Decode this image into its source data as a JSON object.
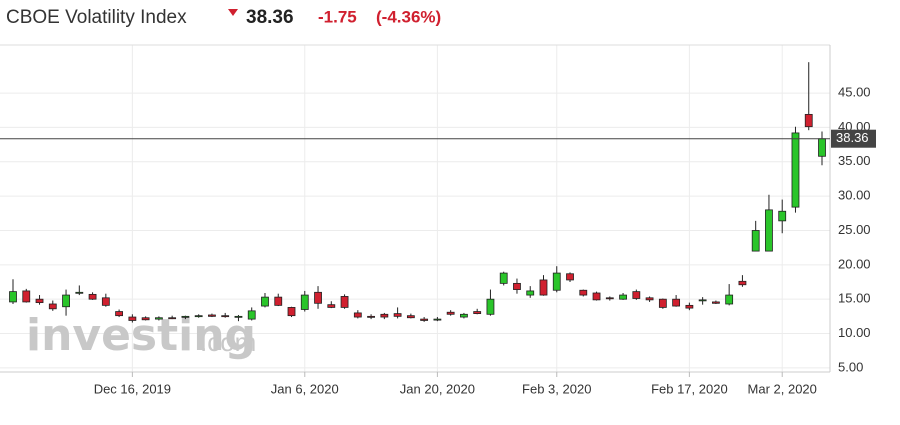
{
  "chart_data": {
    "type": "candlestick",
    "title": "CBOE Volatility Index",
    "last_price": 38.36,
    "change": -1.75,
    "change_pct": "(-4.36%)",
    "brand": "investing",
    "brand_suffix": ".com",
    "categories": [
      null,
      null,
      null,
      null,
      null,
      null,
      null,
      null,
      null,
      "Dec 16, 2019",
      null,
      null,
      null,
      null,
      null,
      null,
      null,
      null,
      null,
      null,
      null,
      null,
      "Jan 6, 2020",
      null,
      null,
      null,
      null,
      null,
      null,
      null,
      null,
      null,
      "Jan 20, 2020",
      null,
      null,
      null,
      null,
      null,
      null,
      null,
      null,
      "Feb 3, 2020",
      null,
      null,
      null,
      null,
      null,
      null,
      null,
      null,
      null,
      "Feb 17, 2020",
      null,
      null,
      null,
      null,
      null,
      null,
      "Mar 2, 2020",
      null,
      null,
      null
    ],
    "open": [
      14.6,
      16.2,
      15.0,
      14.3,
      13.9,
      15.9,
      15.7,
      15.2,
      13.2,
      12.4,
      12.3,
      12.1,
      12.3,
      12.4,
      12.5,
      12.7,
      12.6,
      12.4,
      12.1,
      14.0,
      15.3,
      13.8,
      13.5,
      16.0,
      14.2,
      15.4,
      13.0,
      12.5,
      12.8,
      12.9,
      12.6,
      12.1,
      12.1,
      13.1,
      12.4,
      13.2,
      12.8,
      17.3,
      17.3,
      15.6,
      17.8,
      16.3,
      18.7,
      16.3,
      15.9,
      15.2,
      15.0,
      16.1,
      15.2,
      15.0,
      15.0,
      14.1,
      14.8,
      14.6,
      14.3,
      17.6,
      22.0,
      22.0,
      26.4,
      28.4,
      41.9,
      35.8
    ],
    "high": [
      17.9,
      16.5,
      15.6,
      14.8,
      16.4,
      17.0,
      16.0,
      15.8,
      13.5,
      12.8,
      12.5,
      12.5,
      12.6,
      12.6,
      12.8,
      12.9,
      13.0,
      12.7,
      13.8,
      15.9,
      15.8,
      13.9,
      16.2,
      16.9,
      14.7,
      15.7,
      13.4,
      12.8,
      13.0,
      13.8,
      12.9,
      12.4,
      12.4,
      13.4,
      13.0,
      13.6,
      16.4,
      19.0,
      18.0,
      16.9,
      18.5,
      19.8,
      18.9,
      16.4,
      16.1,
      15.4,
      15.9,
      16.4,
      15.4,
      15.1,
      15.6,
      14.5,
      15.3,
      14.8,
      17.2,
      18.5,
      26.4,
      30.2,
      29.5,
      40.1,
      49.5,
      39.4
    ],
    "low": [
      14.3,
      14.5,
      14.2,
      13.3,
      12.6,
      15.6,
      14.9,
      13.9,
      12.4,
      11.6,
      11.9,
      11.9,
      12.1,
      12.1,
      12.3,
      12.4,
      12.3,
      11.8,
      11.9,
      13.8,
      14.0,
      12.4,
      13.2,
      13.6,
      13.7,
      13.6,
      12.2,
      12.1,
      12.1,
      12.2,
      12.2,
      11.7,
      11.8,
      12.6,
      12.2,
      12.8,
      12.6,
      17.0,
      15.8,
      15.2,
      15.5,
      16.0,
      17.5,
      15.4,
      14.8,
      14.8,
      14.9,
      14.9,
      14.6,
      13.6,
      13.9,
      13.4,
      14.2,
      14.3,
      14.1,
      16.8,
      22.0,
      22.0,
      24.6,
      27.6,
      39.6,
      34.5
    ],
    "close": [
      16.1,
      14.6,
      14.5,
      13.6,
      15.6,
      16.0,
      15.0,
      14.1,
      12.6,
      11.9,
      12.0,
      12.3,
      12.2,
      12.5,
      12.6,
      12.5,
      12.5,
      12.5,
      13.3,
      15.3,
      14.1,
      12.6,
      15.6,
      14.4,
      13.8,
      13.8,
      12.4,
      12.4,
      12.4,
      12.5,
      12.3,
      11.9,
      12.1,
      12.8,
      12.8,
      12.9,
      15.0,
      18.8,
      16.4,
      16.2,
      15.6,
      18.8,
      17.8,
      15.6,
      14.9,
      15.1,
      15.6,
      15.1,
      14.9,
      13.8,
      14.0,
      13.7,
      14.9,
      14.4,
      15.6,
      17.1,
      25.0,
      28.0,
      27.8,
      39.2,
      40.11,
      38.36
    ],
    "up_color": "#2ac52a",
    "down_color": "#d0202f",
    "ylim": [
      4.4,
      52
    ],
    "yticks": [
      {
        "value": 5,
        "label": "5.00"
      },
      {
        "value": 10,
        "label": "10.00"
      },
      {
        "value": 15,
        "label": "15.00"
      },
      {
        "value": 20,
        "label": "20.00"
      },
      {
        "value": 25,
        "label": "25.00"
      },
      {
        "value": 30,
        "label": "30.00"
      },
      {
        "value": 35,
        "label": "35.00"
      },
      {
        "value": 40,
        "label": "40.00"
      },
      {
        "value": 45,
        "label": "45.00"
      }
    ],
    "grid": true
  }
}
